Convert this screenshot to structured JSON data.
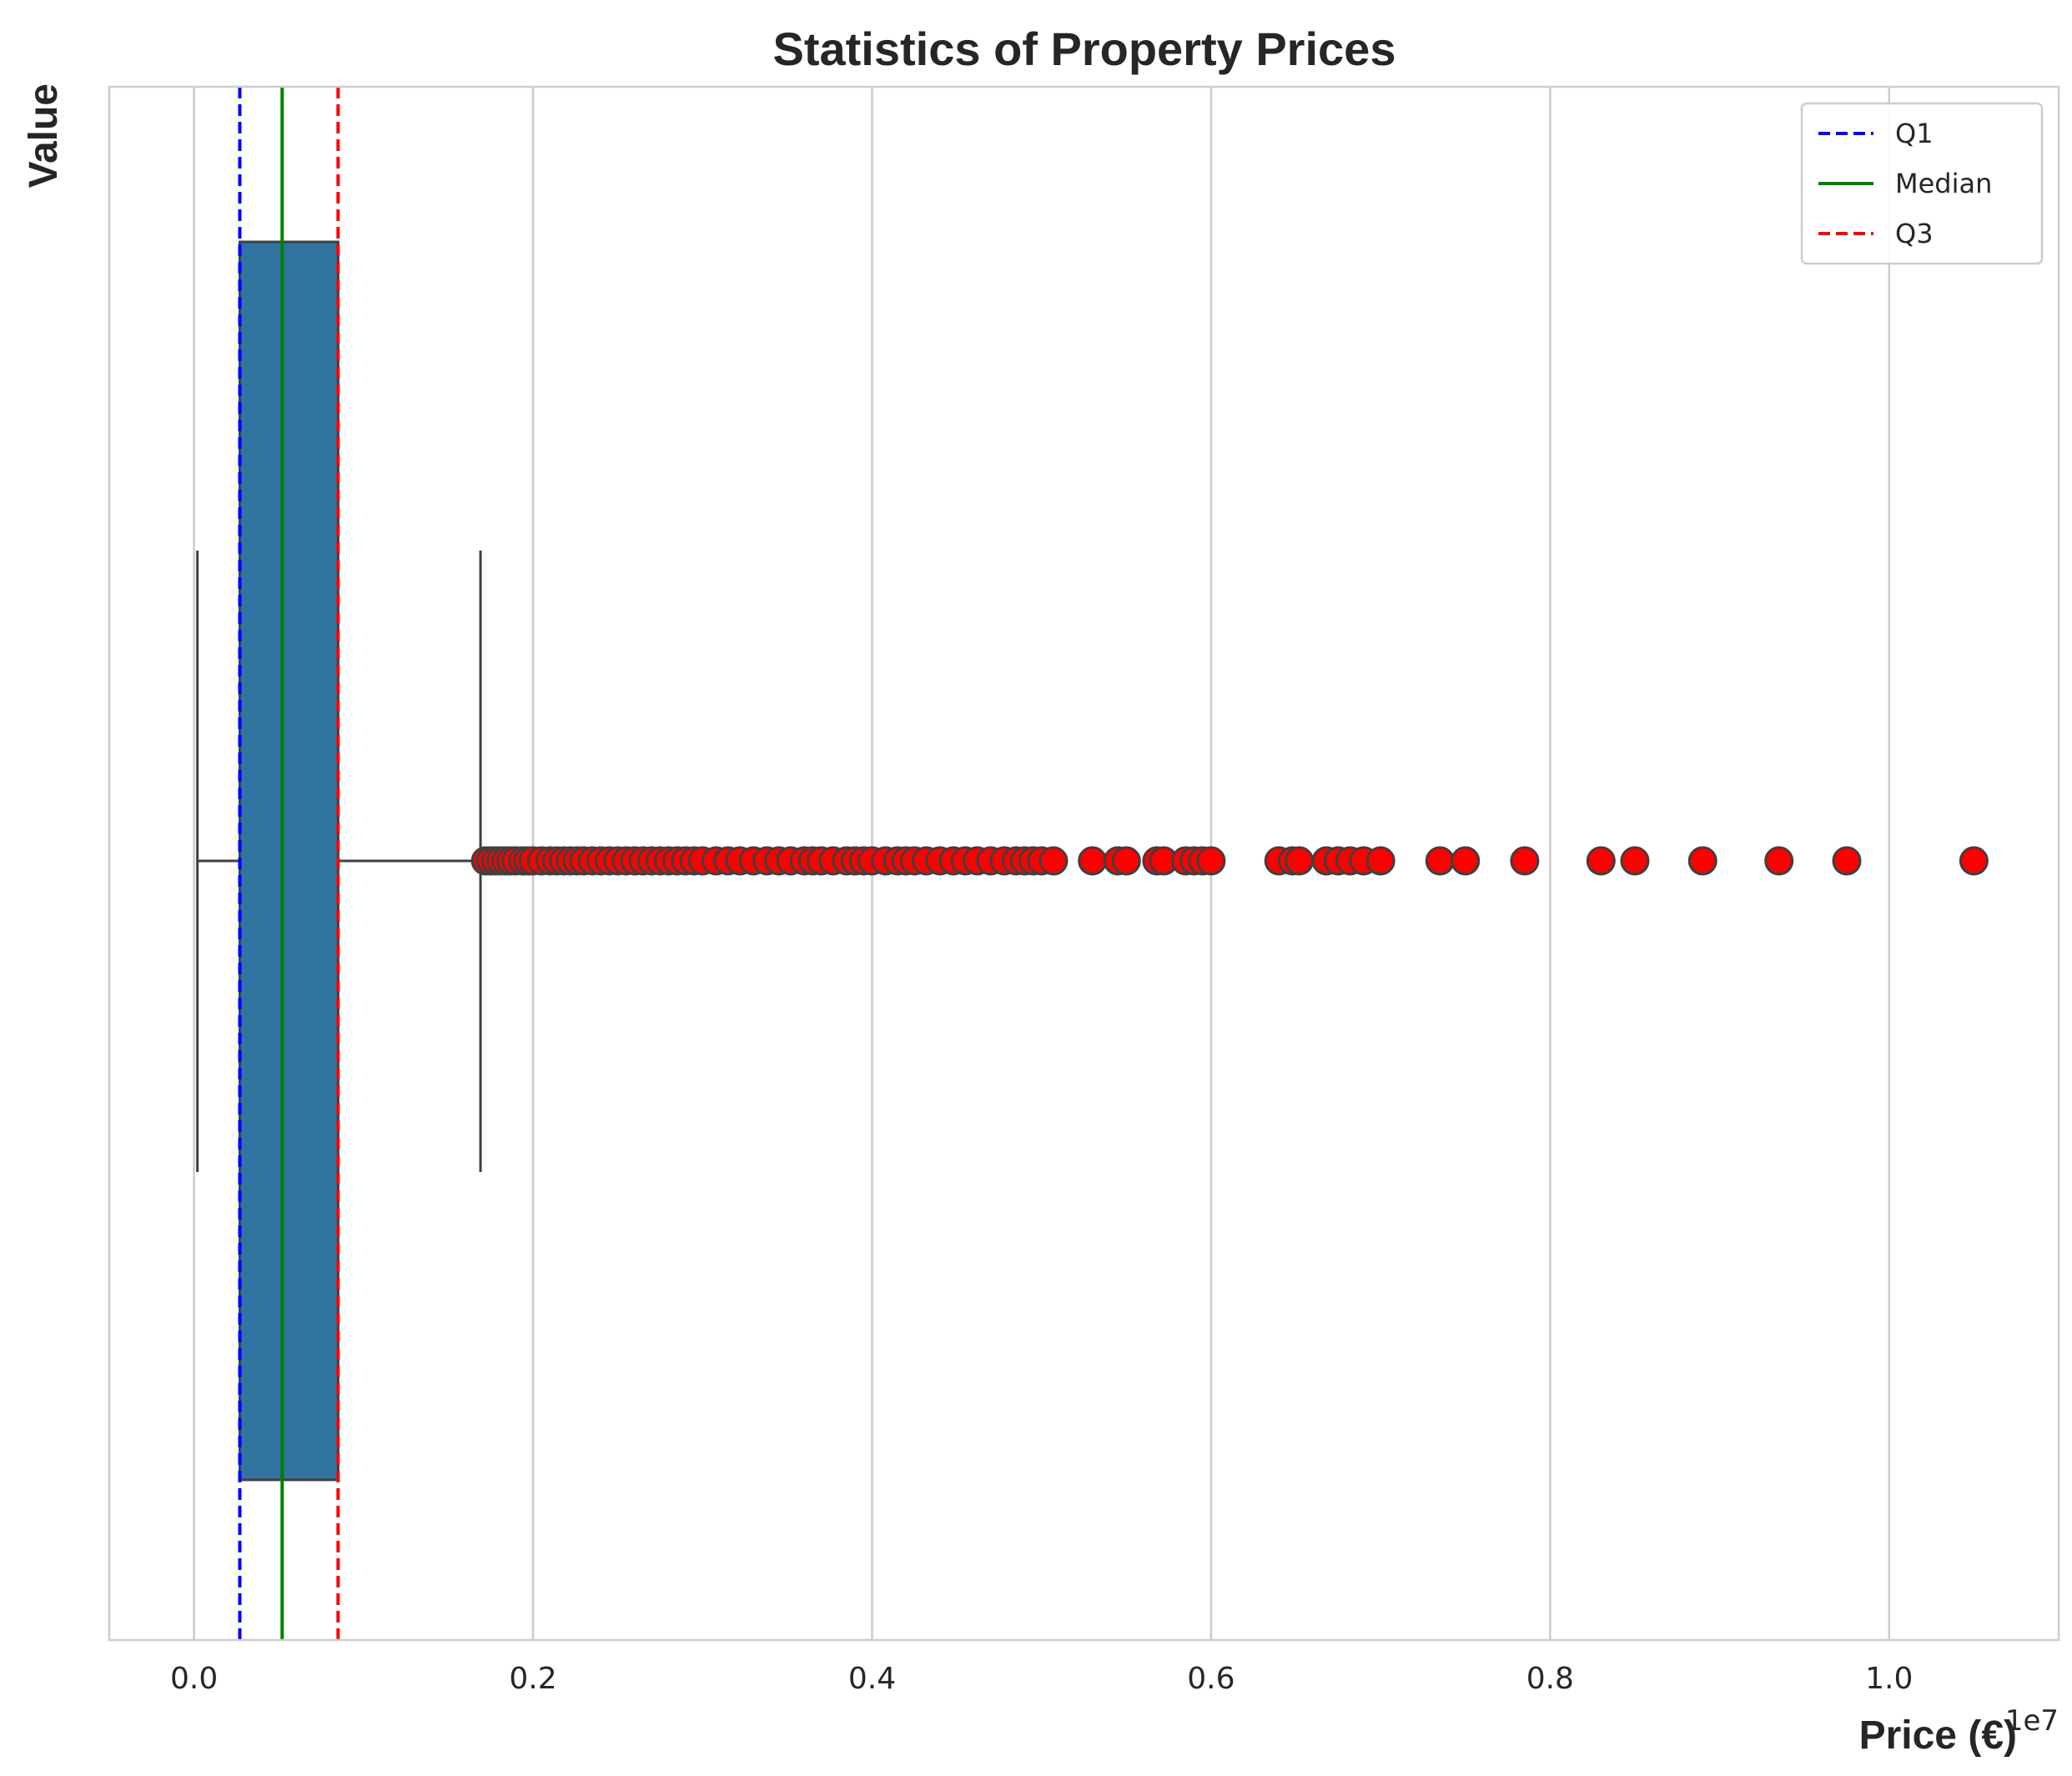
{
  "chart_data": {
    "type": "box",
    "title": "Statistics of Property Prices",
    "xlabel": "Price (€)",
    "ylabel": "Value",
    "x_offset_label": "1e7",
    "xlim": [
      -0.05,
      1.1
    ],
    "x_ticks": [
      0.0,
      0.2,
      0.4,
      0.6,
      0.8,
      1.0
    ],
    "x_tick_labels": [
      "0.0",
      "0.2",
      "0.4",
      "0.6",
      "0.8",
      "1.0"
    ],
    "grid": "vertical",
    "orientation": "horizontal",
    "box": {
      "min": 0.002,
      "q1": 0.027,
      "median": 0.052,
      "q3": 0.085,
      "whisker_low": 0.002,
      "whisker_high": 0.169,
      "fill_color": "#3274a1"
    },
    "outliers": [
      0.172,
      0.175,
      0.178,
      0.181,
      0.184,
      0.187,
      0.19,
      0.194,
      0.197,
      0.2,
      0.205,
      0.21,
      0.214,
      0.218,
      0.222,
      0.226,
      0.23,
      0.235,
      0.24,
      0.245,
      0.25,
      0.255,
      0.26,
      0.265,
      0.27,
      0.275,
      0.28,
      0.285,
      0.29,
      0.295,
      0.3,
      0.308,
      0.315,
      0.322,
      0.33,
      0.338,
      0.345,
      0.352,
      0.36,
      0.365,
      0.37,
      0.377,
      0.385,
      0.39,
      0.395,
      0.4,
      0.408,
      0.415,
      0.42,
      0.425,
      0.432,
      0.44,
      0.448,
      0.455,
      0.462,
      0.47,
      0.478,
      0.485,
      0.49,
      0.495,
      0.5,
      0.507,
      0.53,
      0.545,
      0.55,
      0.568,
      0.572,
      0.585,
      0.59,
      0.595,
      0.6,
      0.64,
      0.648,
      0.652,
      0.668,
      0.675,
      0.682,
      0.69,
      0.7,
      0.735,
      0.75,
      0.785,
      0.83,
      0.85,
      0.89,
      0.935,
      0.975,
      1.05
    ],
    "outlier_color": "#ff0000",
    "lines": [
      {
        "name": "Q1",
        "value": 0.027,
        "color": "#0000ff",
        "style": "dashed"
      },
      {
        "name": "Median",
        "value": 0.052,
        "color": "#008000",
        "style": "solid"
      },
      {
        "name": "Q3",
        "value": 0.085,
        "color": "#ff0000",
        "style": "dashed"
      }
    ],
    "legend_position": "top-right"
  }
}
